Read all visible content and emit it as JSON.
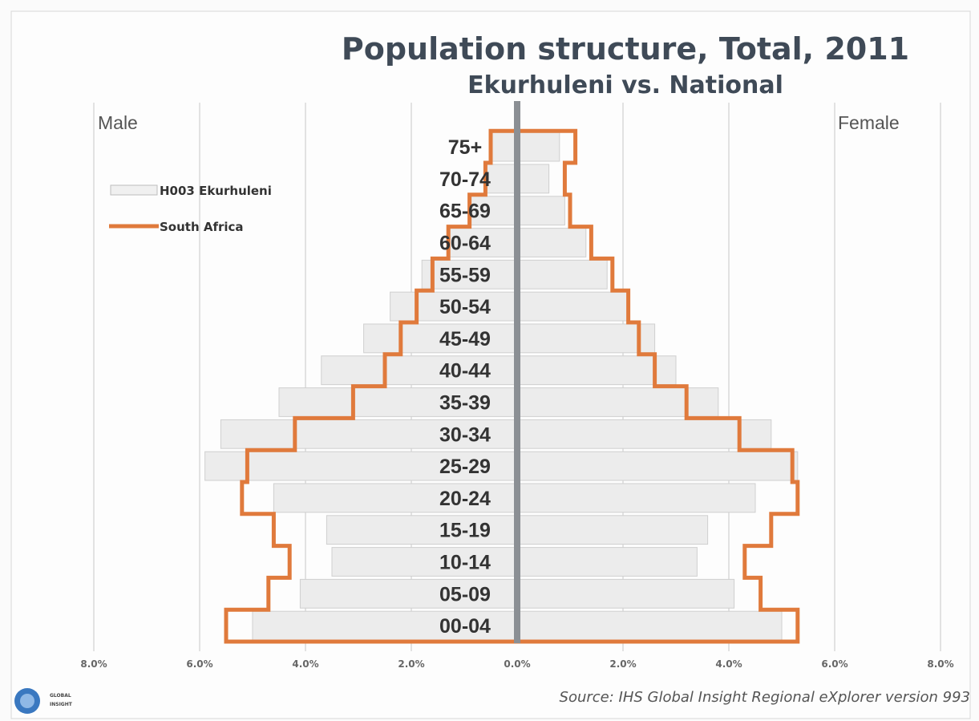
{
  "chart_data": {
    "type": "bar",
    "title": "Population structure, Total, 2011",
    "subtitle": "Ekurhuleni vs. National",
    "left_label": "Male",
    "right_label": "Female",
    "categories": [
      "00-04",
      "05-09",
      "10-14",
      "15-19",
      "20-24",
      "25-29",
      "30-34",
      "35-39",
      "40-44",
      "45-49",
      "50-54",
      "55-59",
      "60-64",
      "65-69",
      "70-74",
      "75+"
    ],
    "x_ticks": [
      "8.0%",
      "6.0%",
      "4.0%",
      "2.0%",
      "0.0%",
      "2.0%",
      "4.0%",
      "6.0%",
      "8.0%"
    ],
    "xlim": [
      -8,
      8
    ],
    "legend_position": "top-left",
    "series": [
      {
        "name": "H003 Ekurhuleni",
        "style": "bars",
        "color": "#ececec",
        "male": [
          5.0,
          4.1,
          3.5,
          3.6,
          4.6,
          5.9,
          5.6,
          4.5,
          3.7,
          2.9,
          2.4,
          1.8,
          1.3,
          0.9,
          0.6,
          0.5
        ],
        "female": [
          5.0,
          4.1,
          3.4,
          3.6,
          4.5,
          5.3,
          4.8,
          3.8,
          3.0,
          2.6,
          2.1,
          1.7,
          1.3,
          0.9,
          0.6,
          0.8
        ]
      },
      {
        "name": "South Africa",
        "style": "outline",
        "color": "#e07a3c",
        "male": [
          5.5,
          4.7,
          4.3,
          4.6,
          5.2,
          5.1,
          4.2,
          3.1,
          2.5,
          2.2,
          1.9,
          1.6,
          1.3,
          0.9,
          0.6,
          0.5
        ],
        "female": [
          5.3,
          4.6,
          4.3,
          4.8,
          5.3,
          5.2,
          4.2,
          3.2,
          2.6,
          2.3,
          2.1,
          1.8,
          1.4,
          1.0,
          0.9,
          1.1
        ]
      }
    ]
  },
  "source": "Source: IHS Global Insight Regional eXplorer version 993",
  "logo": {
    "line1": "GLOBAL",
    "line2": "INSIGHT"
  }
}
